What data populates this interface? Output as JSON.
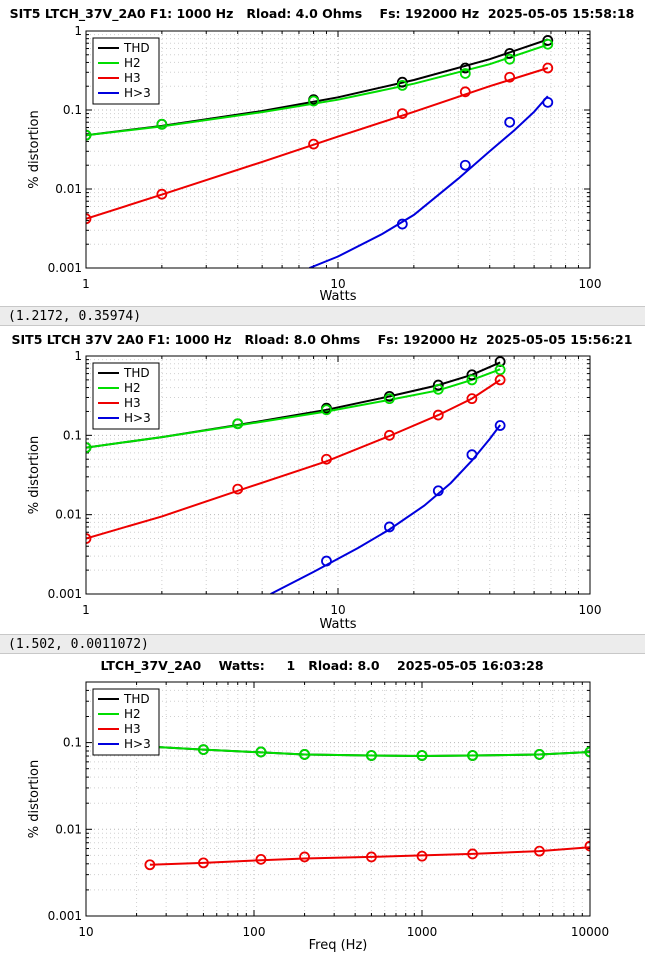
{
  "status_bars": [
    "(1.2172, 0.35974)",
    "(1.502, 0.0011072)"
  ],
  "chart_data": [
    {
      "type": "line",
      "title": "SIT5 LTCH_37V_2A0 F1: 1000 Hz   Rload: 4.0 Ohms    Fs: 192000 Hz  2025-05-05 15:58:18",
      "xlabel": "Watts",
      "ylabel": "% distortion",
      "xscale": "log",
      "yscale": "log",
      "xlim": [
        1,
        100
      ],
      "ylim": [
        0.001,
        1
      ],
      "xticks": [
        1,
        10,
        100
      ],
      "xtick_labels": [
        "1",
        "10",
        "100"
      ],
      "yticks": [
        0.001,
        0.01,
        0.1,
        1
      ],
      "ytick_labels": [
        "0.001",
        "0.01",
        "0.1",
        "1"
      ],
      "grid": true,
      "legend": "top-left",
      "series": [
        {
          "name": "THD",
          "color": "#000000",
          "x": [
            1,
            2,
            8,
            18,
            32,
            48,
            68
          ],
          "y": [
            0.048,
            0.066,
            0.135,
            0.225,
            0.34,
            0.52,
            0.76
          ],
          "fit_x": [
            1,
            2,
            5,
            10,
            20,
            40,
            68
          ],
          "fit_y": [
            0.048,
            0.063,
            0.097,
            0.145,
            0.24,
            0.44,
            0.78
          ]
        },
        {
          "name": "H2",
          "color": "#00dd00",
          "x": [
            1,
            2,
            8,
            18,
            32,
            48,
            68
          ],
          "y": [
            0.048,
            0.066,
            0.13,
            0.205,
            0.29,
            0.44,
            0.68
          ],
          "fit_x": [
            1,
            2,
            5,
            10,
            20,
            40,
            68
          ],
          "fit_y": [
            0.048,
            0.062,
            0.094,
            0.135,
            0.215,
            0.38,
            0.67
          ]
        },
        {
          "name": "H3",
          "color": "#ee0000",
          "x": [
            1,
            2,
            8,
            18,
            32,
            48,
            68
          ],
          "y": [
            0.0042,
            0.0086,
            0.037,
            0.09,
            0.17,
            0.26,
            0.34
          ],
          "fit_x": [
            1,
            2,
            5,
            10,
            20,
            40,
            68
          ],
          "fit_y": [
            0.0042,
            0.0085,
            0.022,
            0.046,
            0.095,
            0.2,
            0.34
          ]
        },
        {
          "name": "H>3",
          "color": "#0000dd",
          "x": [
            18,
            32,
            48,
            68
          ],
          "y": [
            0.0036,
            0.02,
            0.07,
            0.125
          ],
          "fit_x": [
            7.7,
            10,
            15,
            20,
            30,
            40,
            50,
            60,
            68
          ],
          "fit_y": [
            0.001,
            0.0014,
            0.0027,
            0.0047,
            0.0135,
            0.03,
            0.055,
            0.095,
            0.15
          ]
        }
      ]
    },
    {
      "type": "line",
      "title": "SIT5 LTCH 37V 2A0 F1: 1000 Hz   Rload: 8.0 Ohms    Fs: 192000 Hz  2025-05-05 15:56:21",
      "xlabel": "Watts",
      "ylabel": "% distortion",
      "xscale": "log",
      "yscale": "log",
      "xlim": [
        1,
        100
      ],
      "ylim": [
        0.001,
        1
      ],
      "xticks": [
        1,
        10,
        100
      ],
      "xtick_labels": [
        "1",
        "10",
        "100"
      ],
      "yticks": [
        0.001,
        0.01,
        0.1,
        1
      ],
      "ytick_labels": [
        "0.001",
        "0.01",
        "0.1",
        "1"
      ],
      "grid": true,
      "legend": "top-left",
      "series": [
        {
          "name": "THD",
          "color": "#000000",
          "x": [
            1,
            4,
            9,
            16,
            25,
            34,
            44
          ],
          "y": [
            0.07,
            0.14,
            0.22,
            0.31,
            0.43,
            0.58,
            0.85
          ],
          "fit_x": [
            1,
            2,
            4,
            9,
            16,
            25,
            34,
            44
          ],
          "fit_y": [
            0.07,
            0.095,
            0.135,
            0.21,
            0.31,
            0.43,
            0.58,
            0.83
          ]
        },
        {
          "name": "H2",
          "color": "#00dd00",
          "x": [
            1,
            4,
            9,
            16,
            25,
            34,
            44
          ],
          "y": [
            0.07,
            0.14,
            0.21,
            0.29,
            0.38,
            0.5,
            0.67
          ],
          "fit_x": [
            1,
            2,
            4,
            9,
            16,
            25,
            34,
            44
          ],
          "fit_y": [
            0.07,
            0.095,
            0.133,
            0.2,
            0.28,
            0.37,
            0.5,
            0.68
          ]
        },
        {
          "name": "H3",
          "color": "#ee0000",
          "x": [
            1,
            4,
            9,
            16,
            25,
            34,
            44
          ],
          "y": [
            0.005,
            0.021,
            0.05,
            0.1,
            0.18,
            0.29,
            0.5
          ],
          "fit_x": [
            1,
            2,
            4,
            9,
            16,
            25,
            34,
            44
          ],
          "fit_y": [
            0.005,
            0.0095,
            0.02,
            0.047,
            0.098,
            0.18,
            0.29,
            0.5
          ]
        },
        {
          "name": "H>3",
          "color": "#0000dd",
          "x": [
            9,
            16,
            25,
            34,
            44
          ],
          "y": [
            0.0026,
            0.007,
            0.02,
            0.057,
            0.133
          ],
          "fit_x": [
            5.4,
            8,
            12,
            16,
            22,
            28,
            34,
            40,
            44
          ],
          "fit_y": [
            0.001,
            0.0019,
            0.0038,
            0.0065,
            0.013,
            0.025,
            0.048,
            0.09,
            0.135
          ]
        }
      ]
    },
    {
      "type": "line",
      "title": "LTCH_37V_2A0    Watts:     1   Rload: 8.0    2025-05-05 16:03:28",
      "xlabel": "Freq (Hz)",
      "ylabel": "% distortion",
      "xscale": "log",
      "yscale": "log",
      "xlim": [
        10,
        10000
      ],
      "ylim": [
        0.001,
        0.5
      ],
      "xticks": [
        10,
        100,
        1000,
        10000
      ],
      "xtick_labels": [
        "10",
        "100",
        "1000",
        "10000"
      ],
      "yticks": [
        0.001,
        0.01,
        0.1
      ],
      "ytick_labels": [
        "0.001",
        "0.01",
        "0.1"
      ],
      "grid": true,
      "legend": "top-left",
      "series": [
        {
          "name": "THD",
          "color": "#000000",
          "x": [
            24,
            50,
            110,
            200,
            500,
            1000,
            2000,
            5000,
            10000
          ],
          "y": [
            0.09,
            0.083,
            0.078,
            0.073,
            0.071,
            0.071,
            0.071,
            0.073,
            0.078
          ],
          "fit_x": [
            24,
            50,
            110,
            200,
            500,
            1000,
            2000,
            5000,
            10000
          ],
          "fit_y": [
            0.09,
            0.083,
            0.077,
            0.073,
            0.071,
            0.07,
            0.071,
            0.073,
            0.078
          ]
        },
        {
          "name": "H2",
          "color": "#00dd00",
          "x": [
            24,
            50,
            110,
            200,
            500,
            1000,
            2000,
            5000,
            10000
          ],
          "y": [
            0.09,
            0.083,
            0.078,
            0.073,
            0.071,
            0.071,
            0.071,
            0.073,
            0.078
          ],
          "fit_x": [
            24,
            50,
            110,
            200,
            500,
            1000,
            2000,
            5000,
            10000
          ],
          "fit_y": [
            0.09,
            0.083,
            0.077,
            0.073,
            0.071,
            0.07,
            0.071,
            0.073,
            0.078
          ]
        },
        {
          "name": "H3",
          "color": "#ee0000",
          "x": [
            24,
            50,
            110,
            200,
            500,
            1000,
            2000,
            5000,
            10000
          ],
          "y": [
            0.0039,
            0.0041,
            0.0045,
            0.0048,
            0.0048,
            0.0049,
            0.0052,
            0.0056,
            0.0064
          ],
          "fit_x": [
            24,
            50,
            110,
            200,
            500,
            1000,
            2000,
            5000,
            10000
          ],
          "fit_y": [
            0.0039,
            0.0041,
            0.0044,
            0.0046,
            0.0048,
            0.005,
            0.0052,
            0.0056,
            0.0062
          ]
        },
        {
          "name": "H>3",
          "color": "#0000dd",
          "x": [],
          "y": [],
          "fit_x": [],
          "fit_y": []
        }
      ]
    }
  ]
}
